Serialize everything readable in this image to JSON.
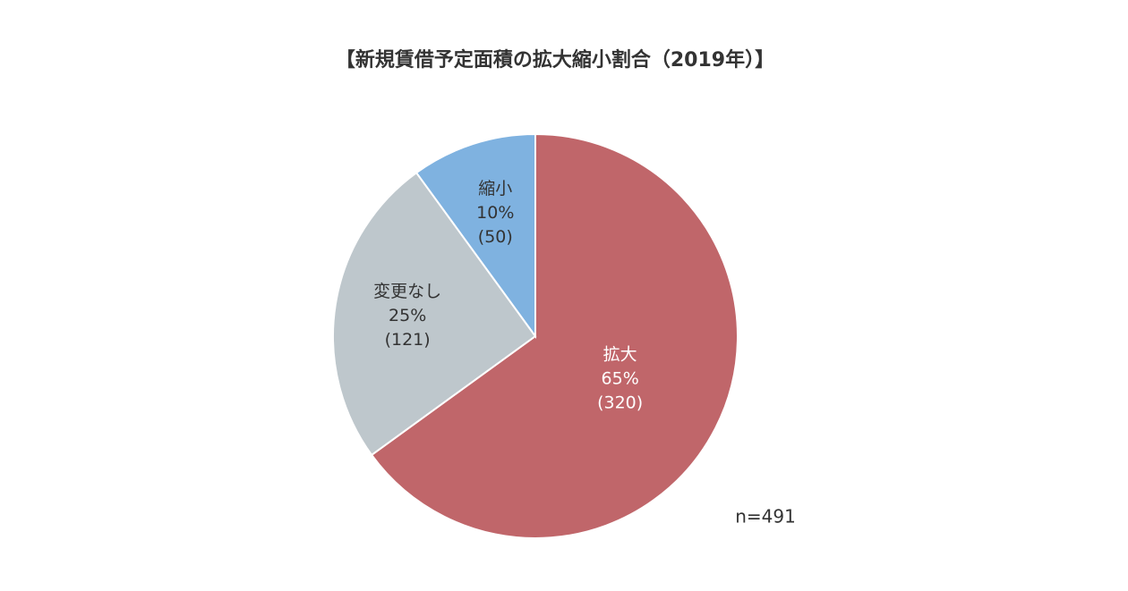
{
  "chart_data": {
    "type": "pie",
    "title": "【新規賃借予定面積の拡大縮小割合（2019年）】",
    "categories": [
      "拡大",
      "変更なし",
      "縮小"
    ],
    "values": [
      65,
      25,
      10
    ],
    "value_labels": [
      "65%",
      "25%",
      "10%"
    ],
    "counts": [
      320,
      121,
      50
    ],
    "count_labels": [
      "(320)",
      "(121)",
      "(50)"
    ],
    "colors": [
      "#c0666a",
      "#bec7cc",
      "#7fb2e0"
    ],
    "label_colors": [
      "#ffffff",
      "#333333",
      "#333333"
    ],
    "note": "n=491"
  }
}
